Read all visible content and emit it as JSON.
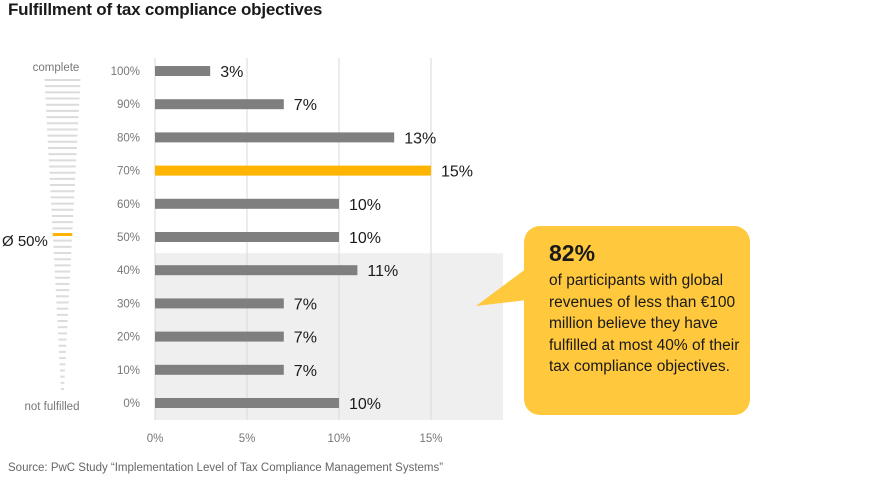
{
  "title": "Fulfillment of tax compliance objectives",
  "source": "Source: PwC Study “Implementation Level of Tax Compliance Management Systems”",
  "scale": {
    "top_label": "complete",
    "bottom_label": "not fulfilled",
    "average_label": "Ø 50%",
    "average_value": 50
  },
  "callout": {
    "value": "82%",
    "text": "of participants with global revenues of less than €100 million believe they have fulfilled at most 40% of their tax compliance objectives."
  },
  "colors": {
    "bar": "#7f7f7f",
    "highlight": "#ffb400",
    "callout": "#ffc83d",
    "shade": "#efefef",
    "grid": "#d9d9d9",
    "scale_lines": "#dcdcdc"
  },
  "chart_data": {
    "type": "bar",
    "orientation": "horizontal",
    "title": "Fulfillment of tax compliance objectives",
    "categories": [
      "100%",
      "90%",
      "80%",
      "70%",
      "60%",
      "50%",
      "40%",
      "30%",
      "20%",
      "10%",
      "0%"
    ],
    "values": [
      3,
      7,
      13,
      15,
      10,
      10,
      11,
      7,
      7,
      7,
      10
    ],
    "value_labels": [
      "3%",
      "7%",
      "13%",
      "15%",
      "10%",
      "10%",
      "11%",
      "7%",
      "7%",
      "7%",
      "10%"
    ],
    "highlight_category": "70%",
    "shaded_categories": [
      "40%",
      "30%",
      "20%",
      "10%",
      "0%"
    ],
    "x_ticks": [
      0,
      5,
      10,
      15
    ],
    "x_tick_labels": [
      "0%",
      "5%",
      "10%",
      "15%"
    ],
    "xlim": [
      0,
      19
    ],
    "grid": true
  }
}
